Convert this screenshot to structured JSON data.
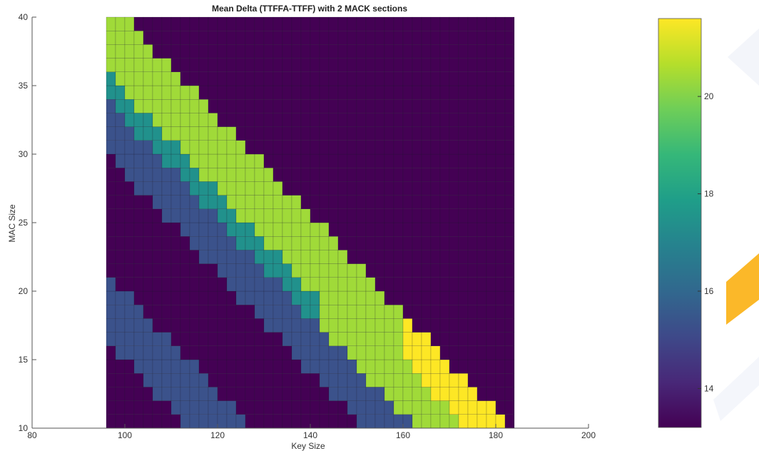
{
  "chart_data": {
    "type": "heatmap",
    "title": "Mean Delta (TTFFA-TTFF) with 2 MACK sections",
    "xlabel": "Key Size",
    "ylabel": "MAC Size",
    "xlim": [
      80,
      200
    ],
    "ylim": [
      10,
      40
    ],
    "x_ticks": [
      "80",
      "100",
      "120",
      "140",
      "160",
      "180",
      "200"
    ],
    "y_ticks": [
      "10",
      "15",
      "20",
      "25",
      "30",
      "35",
      "40"
    ],
    "colorbar": {
      "range": [
        13.2,
        21.6
      ],
      "ticks": [
        "14",
        "16",
        "18",
        "20"
      ],
      "colormap": "viridis"
    },
    "data_x_range": [
      96,
      184
    ],
    "data_x_step": 2,
    "data_y_range": [
      10,
      40
    ],
    "data_y_step": 1,
    "levels": [
      {
        "value": 13.3,
        "color": "#440154"
      },
      {
        "value": 15.3,
        "color": "#3b528b"
      },
      {
        "value": 17.7,
        "color": "#21918c"
      },
      {
        "value": 19.9,
        "color": "#a0da39"
      },
      {
        "value": 21.4,
        "color": "#fde725"
      }
    ],
    "grid": true
  }
}
